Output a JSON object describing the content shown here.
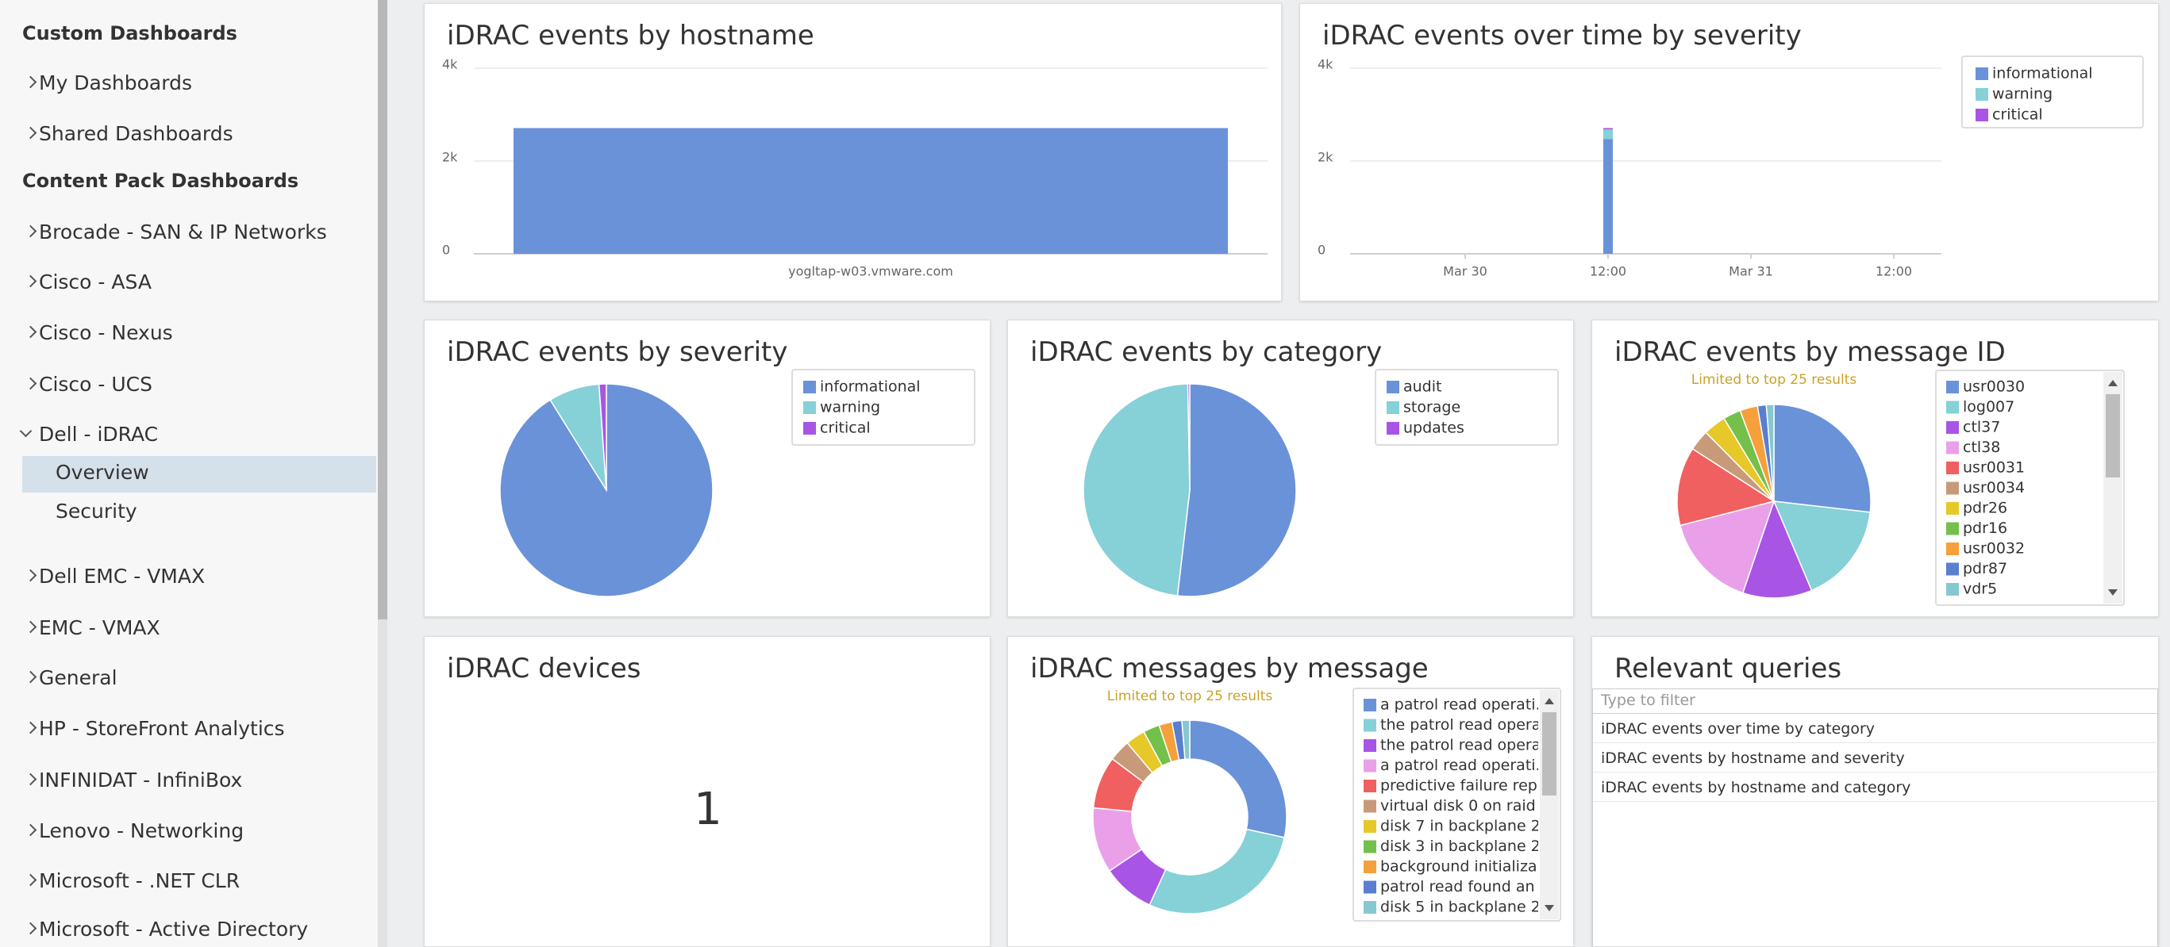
{
  "sidebar": {
    "custom_title": "Custom Dashboards",
    "custom_items": [
      "My Dashboards",
      "Shared Dashboards"
    ],
    "content_title": "Content Pack Dashboards",
    "content_items": [
      "Brocade - SAN & IP Networks",
      "Cisco - ASA",
      "Cisco - Nexus",
      "Cisco - UCS",
      "Dell - iDRAC",
      "Dell EMC - VMAX",
      "EMC - VMAX",
      "General",
      "HP - StoreFront Analytics",
      "INFINIDAT - InfiniBox",
      "Lenovo - Networking",
      "Microsoft - .NET CLR",
      "Microsoft - Active Directory"
    ],
    "expanded_children": [
      "Overview",
      "Security"
    ]
  },
  "panels": [
    {
      "title": "iDRAC events by hostname",
      "chart": {
        "type": "bar",
        "categories": [
          "yogltap-w03.vmware.com"
        ],
        "values": [
          2710
        ],
        "color": "#6a92d8",
        "ylim": [
          0,
          4000
        ],
        "yticks": [
          0,
          {
            "value": 2000,
            "label": "2k"
          },
          {
            "value": 4000,
            "label": "4k"
          }
        ],
        "grid": true
      }
    },
    {
      "title": "iDRAC events over time by severity",
      "chart": {
        "type": "stacked_bar",
        "categories": [
          "Mar 30",
          "12:00",
          "Mar 31",
          "12:00"
        ],
        "series": [
          {
            "name": "informational",
            "color": "#6a92d8",
            "values": [
              null,
              2470,
              null,
              null
            ]
          },
          {
            "name": "warning",
            "color": "#86d0d8",
            "values": [
              null,
              210,
              null,
              null
            ]
          },
          {
            "name": "critical",
            "color": "#a855e6",
            "values": [
              null,
              30,
              null,
              null
            ]
          }
        ],
        "ylim": [
          0,
          4000
        ],
        "yticks": [
          0,
          {
            "value": 2000,
            "label": "2k"
          },
          {
            "value": 4000,
            "label": "4k"
          }
        ],
        "grid": true
      }
    },
    {
      "title": "iDRAC events by severity",
      "chart": {
        "type": "pie",
        "categories": [
          "informational",
          "warning",
          "critical"
        ],
        "values": [
          2470,
          210,
          30
        ],
        "colors": [
          "#6a92d8",
          "#86d0d8",
          "#a855e6"
        ]
      }
    },
    {
      "title": "iDRAC events by category",
      "chart": {
        "type": "pie",
        "categories": [
          "audit",
          "storage",
          "updates"
        ],
        "values": [
          52,
          48,
          0.3
        ],
        "colors": [
          "#6a92d8",
          "#86d0d8",
          "#a855e6"
        ]
      }
    },
    {
      "title": "iDRAC events by message ID",
      "note": "Limited to top 25 results",
      "chart": {
        "type": "pie",
        "categories": [
          "usr0030",
          "log007",
          "ctl37",
          "ctl38",
          "usr0031",
          "usr0034",
          "pdr26",
          "pdr16",
          "usr0032",
          "pdr87",
          "vdr5"
        ],
        "values": [
          25.5,
          16,
          11,
          15,
          12.5,
          3.3,
          3.6,
          2.8,
          2.8,
          1.4,
          1.2
        ],
        "colors": [
          "#6a92d8",
          "#86d0d8",
          "#a855e6",
          "#e9a0e9",
          "#f06060",
          "#c89a7a",
          "#e6c829",
          "#74c04a",
          "#f5a03a",
          "#5a7ed0",
          "#86c8d0"
        ]
      }
    },
    {
      "title": "iDRAC devices",
      "value": 1
    },
    {
      "title": "iDRAC messages by message",
      "note": "Limited to top 25 results",
      "chart": {
        "type": "donut",
        "categories": [
          "a patrol read operati...",
          "the patrol read opera...",
          "the patrol read opera...",
          "a patrol read operati...",
          "predictive failure rep...",
          "virtual disk 0 on raid ...",
          "disk 7 in backplane 2...",
          "disk 3 in backplane 2...",
          "background initializa...",
          "patrol read found an ...",
          "disk 5 in backplane 2..."
        ],
        "values": [
          26,
          26,
          8,
          10,
          8,
          3.3,
          3,
          2.5,
          2,
          1.5,
          1.2
        ],
        "colors": [
          "#6a92d8",
          "#86d0d8",
          "#a855e6",
          "#e9a0e9",
          "#f06060",
          "#c89a7a",
          "#e6c829",
          "#74c04a",
          "#f5a03a",
          "#5a7ed0",
          "#86c8d0"
        ]
      }
    },
    {
      "title": "Relevant queries",
      "filter_placeholder": "Type to filter",
      "queries": [
        "iDRAC events over time by category",
        "iDRAC events by hostname and severity",
        "iDRAC events by hostname and category"
      ]
    }
  ]
}
